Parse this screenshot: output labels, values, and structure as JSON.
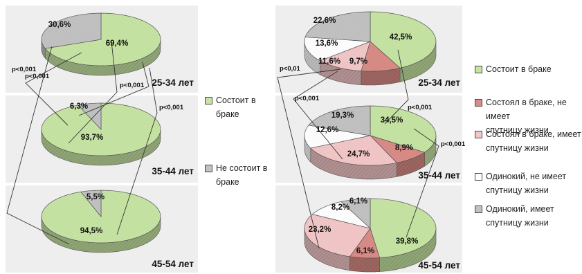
{
  "chart_data": [
    {
      "type": "pie",
      "title": "",
      "series_names": [
        "Состоит в браке",
        "Не состоит в браке"
      ],
      "colors": [
        "#c6e4a3",
        "#c2c2c2"
      ],
      "groups": [
        {
          "label": "25-34 лет",
          "values": [
            69.4,
            30.6
          ],
          "value_labels": [
            "69,4%",
            "30,6%"
          ]
        },
        {
          "label": "35-44 лет",
          "values": [
            93.7,
            6.3
          ],
          "value_labels": [
            "93,7%",
            "6,3%"
          ]
        },
        {
          "label": "45-54 лет",
          "values": [
            94.5,
            5.5
          ],
          "value_labels": [
            "94,5%",
            "5,5%"
          ]
        }
      ],
      "significance": [
        {
          "text": "p<0,001",
          "between": [
            "25-34 лет",
            "35-44 лет"
          ],
          "series": "Состоит в браке"
        },
        {
          "text": "p<0,001",
          "between": [
            "25-34 лет",
            "35-44 лет"
          ],
          "series": "Не состоит в браке"
        },
        {
          "text": "p<0,001",
          "between": [
            "25-34 лет",
            "45-54 лет"
          ],
          "series": "Состоит в браке"
        },
        {
          "text": "p<0,001",
          "between": [
            "25-34 лет",
            "45-54 лет"
          ],
          "series": "Не состоит в браке"
        }
      ]
    },
    {
      "type": "pie",
      "title": "",
      "series_names": [
        "Состоит в браке",
        "Состоял в браке, не имеет спутницу жизни",
        "Состоял в браке, имеет спутницу жизни",
        "Одинокий, не имеет спутницу жизни",
        "Одинокий, имеет спутницу жизни"
      ],
      "colors": [
        "#c6e4a3",
        "#d98c86",
        "#f3c7c7",
        "#ffffff",
        "#c2c2c2"
      ],
      "groups": [
        {
          "label": "25-34 лет",
          "values": [
            42.5,
            9.7,
            11.6,
            13.6,
            22.6
          ],
          "value_labels": [
            "42,5%",
            "9,7%",
            "11,6%",
            "13,6%",
            "22,6%"
          ]
        },
        {
          "label": "35-44 лет",
          "values": [
            34.5,
            8.9,
            24.7,
            12.6,
            19.3
          ],
          "value_labels": [
            "34,5%",
            "8,9%",
            "24,7%",
            "12,6%",
            "19,3%"
          ]
        },
        {
          "label": "45-54 лет",
          "values": [
            39.8,
            6.1,
            23.2,
            8.2,
            6.1
          ],
          "value_labels": [
            "39,8%",
            "6,1%",
            "23,2%",
            "8,2%",
            "6,1%"
          ]
        }
      ],
      "significance": [
        {
          "text": "p<0,01",
          "between": [
            "25-34 лет",
            "45-54 лет"
          ],
          "series": "Состоял в браке, имеет спутницу жизни"
        },
        {
          "text": "p<0,001",
          "between": [
            "25-34 лет",
            "35-44 лет"
          ],
          "series": "Состоял в браке, имеет спутницу жизни"
        },
        {
          "text": "p<0,001",
          "between": [
            "25-34 лет",
            "35-44 лет"
          ],
          "series": "Состоит в браке"
        },
        {
          "text": "p<0,001",
          "between": [
            "35-44 лет",
            "45-54 лет"
          ],
          "series": "Состоит в браке"
        }
      ]
    }
  ],
  "legend_left": [
    {
      "label": "Состоит в\nбраке",
      "color": "#c6e4a3"
    },
    {
      "label": "Не состоит в\nбраке",
      "color": "#c2c2c2"
    }
  ],
  "legend_right": [
    {
      "label": "Состоит в браке",
      "color": "#c6e4a3"
    },
    {
      "label": "Состоял в браке, не имеет\nспутницу жизни",
      "color": "#d98c86"
    },
    {
      "label": "Состоял в браке, имеет\nспутницу жизни",
      "color": "#f3c7c7"
    },
    {
      "label": "Одинокий, не имеет\nспутницу жизни",
      "color": "#ffffff"
    },
    {
      "label": "Одинокий, имеет\nспутницу жизни",
      "color": "#c2c2c2"
    }
  ]
}
